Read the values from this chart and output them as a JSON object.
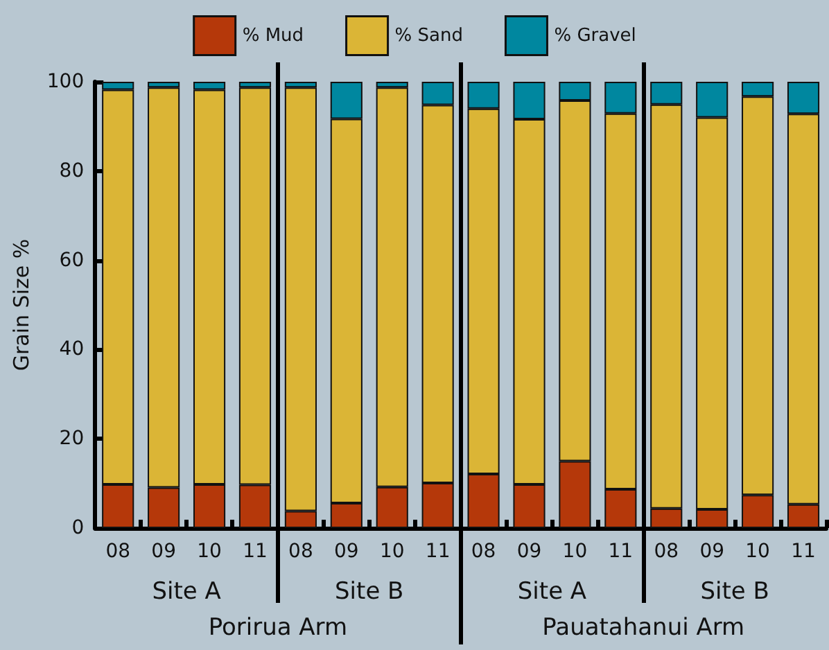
{
  "chart_data": {
    "type": "bar",
    "stacked": true,
    "ylabel": "Grain Size %",
    "categories": [
      "08",
      "09",
      "10",
      "11",
      "08",
      "09",
      "10",
      "11",
      "08",
      "09",
      "10",
      "11",
      "08",
      "09",
      "10",
      "11"
    ],
    "series": [
      {
        "name": "% Mud",
        "color": "#b5380a",
        "values": [
          9.8,
          9.1,
          9.8,
          9.7,
          3.8,
          5.6,
          9.2,
          10.1,
          12.1,
          9.8,
          15.0,
          8.7,
          4.4,
          4.2,
          7.4,
          5.3
        ]
      },
      {
        "name": "% Sand",
        "color": "#dbb536",
        "values": [
          88.4,
          89.6,
          88.4,
          89.0,
          94.9,
          86.1,
          89.5,
          84.7,
          81.9,
          81.8,
          80.8,
          84.2,
          90.5,
          87.8,
          89.3,
          87.5
        ]
      },
      {
        "name": "% Gravel",
        "color": "#00879f",
        "values": [
          1.8,
          1.3,
          1.8,
          1.3,
          1.3,
          8.3,
          1.3,
          5.2,
          6.0,
          8.4,
          4.2,
          7.1,
          5.1,
          8.0,
          3.3,
          7.2
        ]
      }
    ],
    "ylim": [
      0,
      100
    ],
    "yticks": [
      0,
      20,
      40,
      60,
      80,
      100
    ],
    "grid": false,
    "legend": "top",
    "annotations": [
      "Site A",
      "Site B",
      "Site A",
      "Site B",
      "Porirua Arm",
      "Pauatahanui Arm"
    ]
  }
}
